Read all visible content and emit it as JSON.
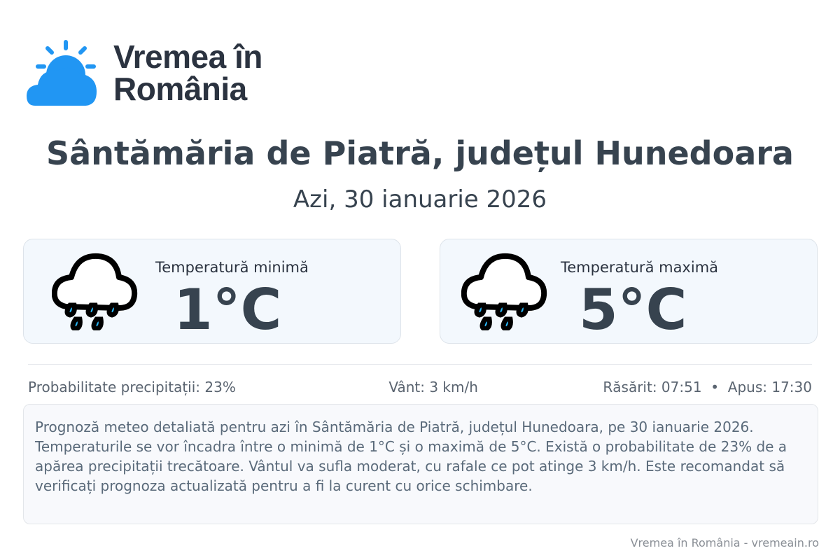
{
  "brand": {
    "line1": "Vremea în",
    "line2": "România",
    "color": "#2196f3"
  },
  "header": {
    "title": "Sântămăria de Piatră, județul Hunedoara",
    "date": "Azi, 30 ianuarie 2026"
  },
  "cards": [
    {
      "label": "Temperatură minimă",
      "value": "1°C",
      "icon": "rain-cloud-icon"
    },
    {
      "label": "Temperatură maximă",
      "value": "5°C",
      "icon": "rain-cloud-icon"
    }
  ],
  "stats": {
    "precip": "Probabilitate precipitații: 23%",
    "wind": "Vânt: 3 km/h",
    "sun": "Răsărit: 07:51  •  Apus: 17:30"
  },
  "description": "Prognoză meteo detaliată pentru azi în Sântămăria de Piatră, județul Hunedoara, pe 30 ianuarie 2026. Temperaturile se vor încadra între o minimă de 1°C și o maximă de 5°C. Există o probabilitate de 23% de a apărea precipitații trecătoare. Vântul va sufla moderat, cu rafale ce pot atinge 3 km/h. Este recomandat să verificați prognoza actualizată pentru a fi la curent cu orice schimbare.",
  "footer": "Vremea în România - vremeain.ro"
}
